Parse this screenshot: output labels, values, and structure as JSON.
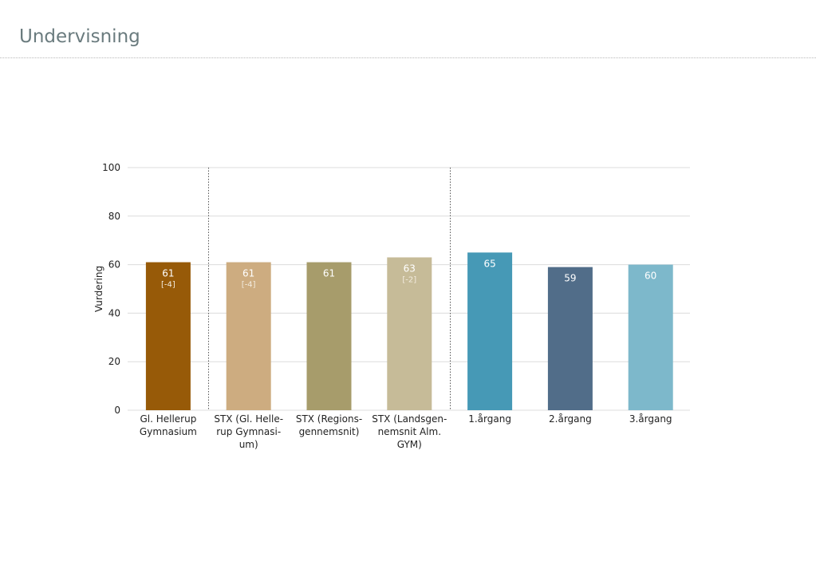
{
  "page": {
    "title": "Undervisning"
  },
  "chart_data": {
    "type": "bar",
    "title": "",
    "xlabel": "",
    "ylabel": "Vurdering",
    "ylim": [
      0,
      100
    ],
    "yticks": [
      0,
      20,
      40,
      60,
      80,
      100
    ],
    "grid": true,
    "group_separators_after": [
      0,
      3
    ],
    "categories": [
      [
        "Gl. Hellerup",
        "Gymnasium"
      ],
      [
        "STX (Gl. Helle-",
        "rup Gymnasi-",
        "um)"
      ],
      [
        "STX (Regions-",
        "gennemsnit)"
      ],
      [
        "STX (Landsgen-",
        "nemsnit Alm.",
        "GYM)"
      ],
      [
        "1.årgang"
      ],
      [
        "2.årgang"
      ],
      [
        "3.årgang"
      ]
    ],
    "values": [
      61,
      61,
      61,
      63,
      65,
      59,
      60
    ],
    "value_labels": [
      "61",
      "61",
      "61",
      "63",
      "65",
      "59",
      "60"
    ],
    "diff_labels": [
      "[-4]",
      "[-4]",
      "",
      "[-2]",
      "",
      "",
      ""
    ],
    "colors": [
      "#975a08",
      "#cdac80",
      "#a79c6b",
      "#c6bb98",
      "#4699b6",
      "#516d89",
      "#7db8cb"
    ]
  }
}
